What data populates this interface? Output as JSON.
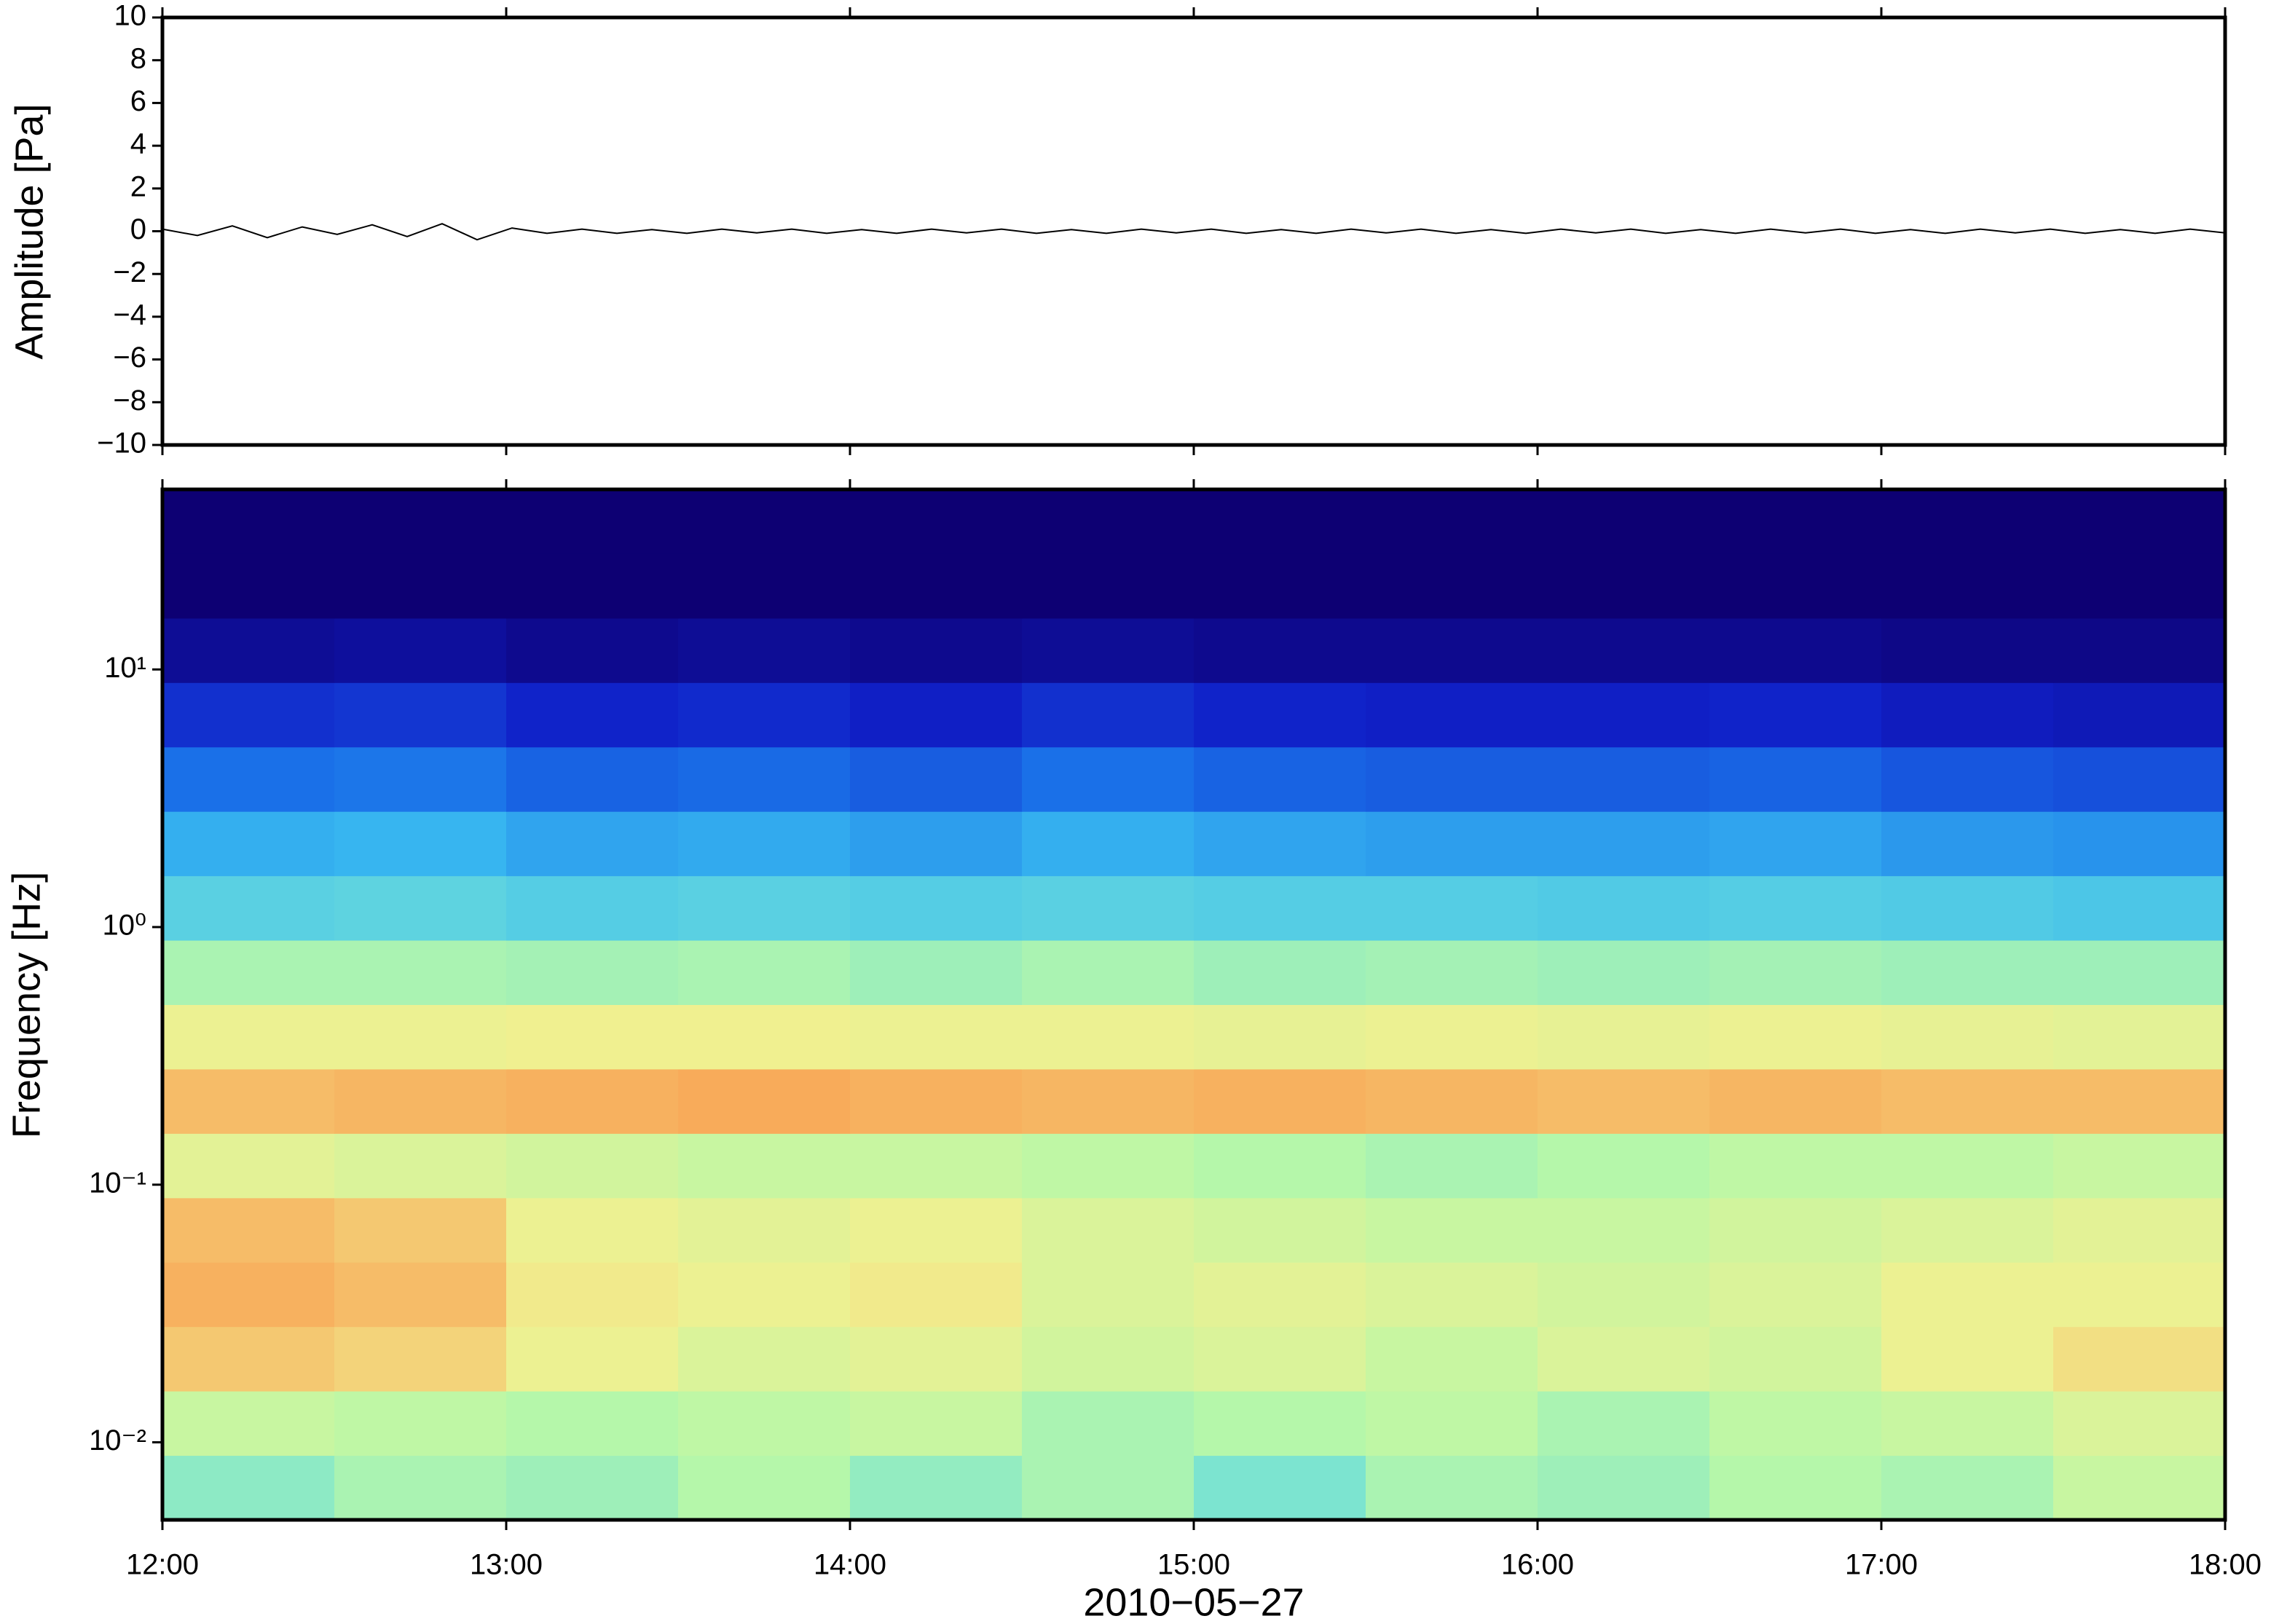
{
  "chart_data": [
    {
      "type": "line",
      "ylabel": "Amplitude [Pa]",
      "color": "#000000",
      "values": [
        0.1,
        -0.2,
        0.25,
        -0.3,
        0.2,
        -0.15,
        0.3,
        -0.25,
        0.35,
        -0.4,
        0.15,
        -0.1,
        0.1,
        -0.1,
        0.08,
        -0.1,
        0.1,
        -0.08,
        0.1,
        -0.1,
        0.08,
        -0.1,
        0.1,
        -0.08,
        0.1,
        -0.1,
        0.08,
        -0.1,
        0.1,
        -0.08,
        0.1,
        -0.1,
        0.08,
        -0.1,
        0.1,
        -0.08,
        0.1,
        -0.1,
        0.08,
        -0.1,
        0.1,
        -0.08,
        0.1,
        -0.1,
        0.08,
        -0.1,
        0.1,
        -0.08,
        0.1,
        -0.1,
        0.08,
        -0.1,
        0.1,
        -0.08,
        0.1,
        -0.1,
        0.08,
        -0.1,
        0.1,
        -0.08
      ],
      "xlim": [
        12,
        18
      ],
      "xticks": [
        12,
        13,
        14,
        15,
        16,
        17,
        18
      ],
      "ylim": [
        -10,
        10
      ],
      "yticks": [
        {
          "value": -10,
          "label": "−10"
        },
        {
          "value": -8,
          "label": "−8"
        },
        {
          "value": -6,
          "label": "−6"
        },
        {
          "value": -4,
          "label": "−4"
        },
        {
          "value": -2,
          "label": "−2"
        },
        0,
        2,
        4,
        6,
        8,
        10
      ]
    },
    {
      "type": "heatmap",
      "ylabel": "Frequency [Hz]",
      "xlabel": "2010−05−27",
      "log_y": true,
      "xlim": [
        12,
        18
      ],
      "xticks": [
        {
          "value": 12,
          "label": "12:00"
        },
        {
          "value": 13,
          "label": "13:00"
        },
        {
          "value": 14,
          "label": "14:00"
        },
        {
          "value": 15,
          "label": "15:00"
        },
        {
          "value": 16,
          "label": "16:00"
        },
        {
          "value": 17,
          "label": "17:00"
        },
        {
          "value": 18,
          "label": "18:00"
        }
      ],
      "ylim": [
        0.005,
        50
      ],
      "yticks": [
        {
          "value": 0.01,
          "label": "10⁻²"
        },
        {
          "value": 0.1,
          "label": "10⁻¹"
        },
        {
          "value": 1,
          "label": "10⁰"
        },
        {
          "value": 10,
          "label": "10¹"
        }
      ],
      "zlim": [
        0,
        1
      ],
      "colormap": [
        "#0d0073",
        "#1020c8",
        "#1a70e8",
        "#38b8f0",
        "#70e0d8",
        "#b8f8a8",
        "#f0f090",
        "#f8a858",
        "#d83020"
      ],
      "z": [
        [
          0.55,
          0.6,
          0.58,
          0.62,
          0.56,
          0.6,
          0.52,
          0.6,
          0.58,
          0.62,
          0.6,
          0.66
        ],
        [
          0.66,
          0.64,
          0.62,
          0.64,
          0.66,
          0.6,
          0.62,
          0.64,
          0.6,
          0.64,
          0.66,
          0.7
        ],
        [
          0.82,
          0.8,
          0.74,
          0.7,
          0.72,
          0.68,
          0.7,
          0.66,
          0.7,
          0.68,
          0.74,
          0.78
        ],
        [
          0.86,
          0.84,
          0.76,
          0.74,
          0.76,
          0.7,
          0.72,
          0.7,
          0.68,
          0.7,
          0.74,
          0.74
        ],
        [
          0.84,
          0.82,
          0.74,
          0.72,
          0.74,
          0.7,
          0.68,
          0.66,
          0.66,
          0.68,
          0.7,
          0.72
        ],
        [
          0.72,
          0.7,
          0.68,
          0.66,
          0.66,
          0.64,
          0.62,
          0.6,
          0.62,
          0.64,
          0.64,
          0.66
        ],
        [
          0.84,
          0.85,
          0.86,
          0.87,
          0.86,
          0.85,
          0.86,
          0.85,
          0.84,
          0.85,
          0.84,
          0.84
        ],
        [
          0.74,
          0.74,
          0.75,
          0.75,
          0.74,
          0.74,
          0.73,
          0.74,
          0.73,
          0.74,
          0.73,
          0.72
        ],
        [
          0.6,
          0.6,
          0.59,
          0.6,
          0.58,
          0.6,
          0.58,
          0.59,
          0.58,
          0.59,
          0.58,
          0.58
        ],
        [
          0.45,
          0.46,
          0.44,
          0.45,
          0.44,
          0.45,
          0.44,
          0.44,
          0.43,
          0.44,
          0.43,
          0.42
        ],
        [
          0.36,
          0.37,
          0.34,
          0.35,
          0.33,
          0.36,
          0.34,
          0.33,
          0.33,
          0.34,
          0.32,
          0.31
        ],
        [
          0.25,
          0.26,
          0.23,
          0.24,
          0.22,
          0.25,
          0.23,
          0.22,
          0.22,
          0.23,
          0.21,
          0.2
        ],
        [
          0.15,
          0.16,
          0.13,
          0.14,
          0.12,
          0.15,
          0.13,
          0.12,
          0.12,
          0.13,
          0.11,
          0.1
        ],
        [
          0.05,
          0.06,
          0.04,
          0.05,
          0.04,
          0.05,
          0.04,
          0.04,
          0.04,
          0.04,
          0.03,
          0.03
        ],
        [
          0,
          0,
          0,
          0,
          0,
          0,
          0,
          0,
          0,
          0,
          0,
          0
        ],
        [
          0,
          0,
          0,
          0,
          0,
          0,
          0,
          0,
          0,
          0,
          0,
          0
        ]
      ]
    }
  ]
}
